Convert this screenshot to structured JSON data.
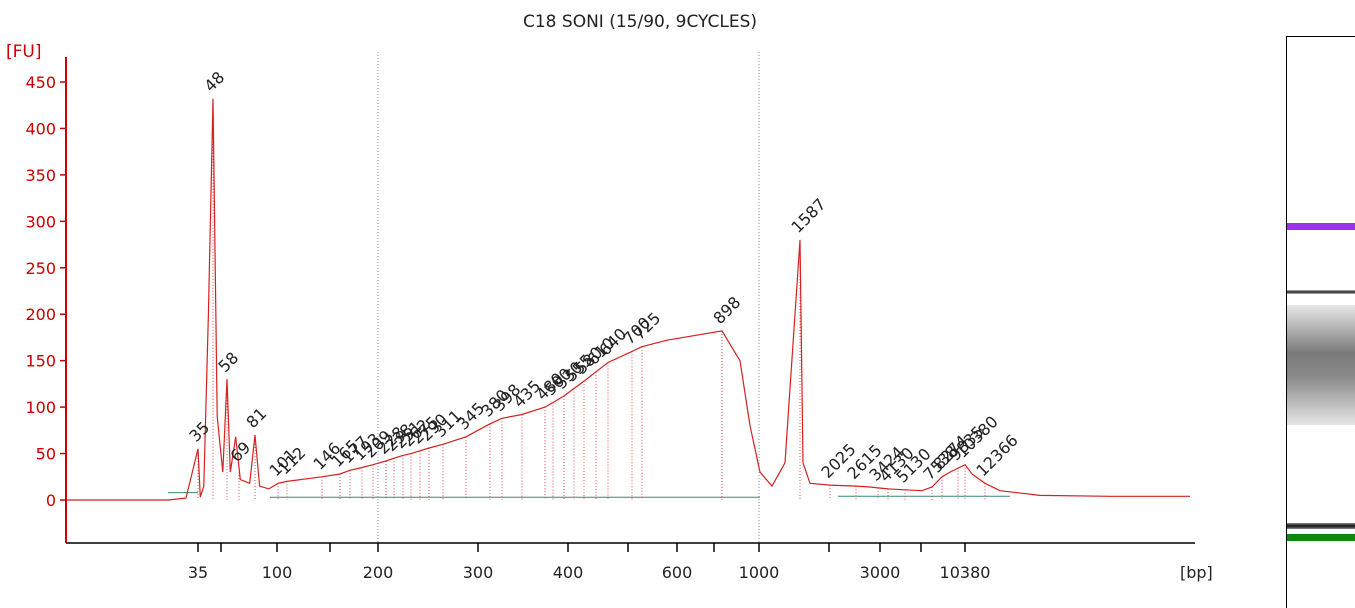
{
  "chart_data": {
    "type": "line",
    "title": "C18 SONI (15/90, 9CYCLES)",
    "ylabel": "[FU]",
    "xlabel": "[bp]",
    "ylim": [
      -50,
      470
    ],
    "yticks": [
      0,
      50,
      100,
      150,
      200,
      250,
      300,
      350,
      400,
      450
    ],
    "xticks": [
      "35",
      "",
      "100",
      "",
      "200",
      "300",
      "400",
      "",
      "600",
      "",
      "1000",
      "",
      "3000",
      "",
      "10380"
    ],
    "lower_marker": "35",
    "upper_marker": "10380",
    "colors": {
      "trace": "#d42020",
      "axis": "#cc0000",
      "lower_marker": "#0a8a0a",
      "upper_marker": "#9933dd",
      "baseline": "#3a8a6a",
      "text": "#222222"
    },
    "series": [
      {
        "points": [
          [
            30,
            0
          ],
          [
            33,
            2
          ],
          [
            35,
            55
          ],
          [
            37,
            3
          ],
          [
            40,
            15
          ],
          [
            44,
            200
          ],
          [
            48,
            432
          ],
          [
            51,
            90
          ],
          [
            55,
            30
          ],
          [
            58,
            130
          ],
          [
            61,
            30
          ],
          [
            66,
            68
          ],
          [
            70,
            22
          ],
          [
            77,
            18
          ],
          [
            81,
            70
          ],
          [
            85,
            15
          ],
          [
            93,
            12
          ],
          [
            101,
            18
          ],
          [
            112,
            20
          ],
          [
            146,
            25
          ],
          [
            165,
            28
          ],
          [
            177,
            32
          ],
          [
            193,
            35
          ],
          [
            209,
            38
          ],
          [
            228,
            42
          ],
          [
            238,
            45
          ],
          [
            251,
            48
          ],
          [
            262,
            50
          ],
          [
            275,
            53
          ],
          [
            290,
            56
          ],
          [
            311,
            60
          ],
          [
            345,
            68
          ],
          [
            380,
            82
          ],
          [
            398,
            88
          ],
          [
            435,
            92
          ],
          [
            480,
            100
          ],
          [
            500,
            105
          ],
          [
            530,
            112
          ],
          [
            555,
            120
          ],
          [
            580,
            128
          ],
          [
            610,
            138
          ],
          [
            640,
            148
          ],
          [
            700,
            160
          ],
          [
            725,
            165
          ],
          [
            780,
            172
          ],
          [
            898,
            182
          ],
          [
            980,
            150
          ],
          [
            1050,
            80
          ],
          [
            1120,
            30
          ],
          [
            1200,
            15
          ],
          [
            1300,
            40
          ],
          [
            1587,
            280
          ],
          [
            1650,
            40
          ],
          [
            1800,
            18
          ],
          [
            2025,
            16
          ],
          [
            2615,
            15
          ],
          [
            3000,
            14
          ],
          [
            3424,
            13
          ],
          [
            4130,
            12
          ],
          [
            5130,
            11
          ],
          [
            6500,
            10
          ],
          [
            7538,
            14
          ],
          [
            8274,
            25
          ],
          [
            9000,
            30
          ],
          [
            10380,
            38
          ],
          [
            11000,
            28
          ],
          [
            12366,
            18
          ],
          [
            14000,
            10
          ],
          [
            18000,
            5
          ],
          [
            24000,
            4
          ],
          [
            35000,
            4
          ]
        ]
      }
    ],
    "peak_labels": [
      "35",
      "48",
      "58",
      "69",
      "81",
      "101",
      "112",
      "146",
      "165",
      "177",
      "193",
      "209",
      "228",
      "238",
      "251",
      "262",
      "275",
      "290",
      "311",
      "345",
      "380",
      "398",
      "435",
      "480",
      "500",
      "530",
      "555",
      "580",
      "610",
      "640",
      "700",
      "725",
      "898",
      "1587",
      "2025",
      "2615",
      "3424",
      "4130",
      "5130",
      "7538",
      "8274",
      "9835",
      "10380",
      "12366"
    ]
  }
}
